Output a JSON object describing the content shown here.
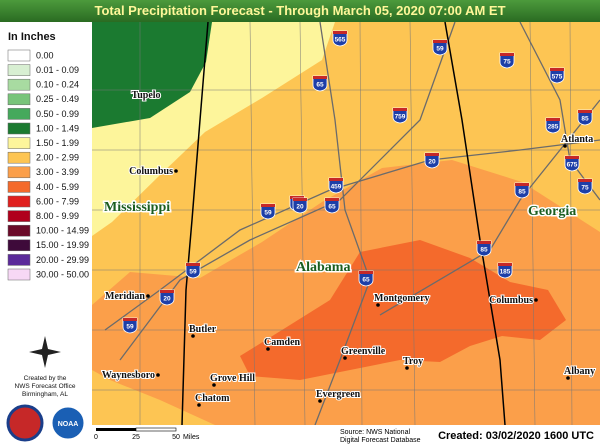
{
  "header": {
    "title": "Total Precipitation Forecast - Through March 05, 2020 07:00 AM ET"
  },
  "legend": {
    "title": "In Inches",
    "items": [
      {
        "label": "0.00",
        "color": "#ffffff"
      },
      {
        "label": "0.01 - 0.09",
        "color": "#d8efd2"
      },
      {
        "label": "0.10 - 0.24",
        "color": "#a8dba1"
      },
      {
        "label": "0.25 - 0.49",
        "color": "#78c47a"
      },
      {
        "label": "0.50 - 0.99",
        "color": "#45a95c"
      },
      {
        "label": "1.00 - 1.49",
        "color": "#1b7a30"
      },
      {
        "label": "1.50 - 1.99",
        "color": "#fdf59b"
      },
      {
        "label": "2.00 - 2.99",
        "color": "#fdc553"
      },
      {
        "label": "3.00 - 3.99",
        "color": "#fb9f4a"
      },
      {
        "label": "4.00 - 5.99",
        "color": "#f46a2c"
      },
      {
        "label": "6.00 - 7.99",
        "color": "#e0201e"
      },
      {
        "label": "8.00 - 9.99",
        "color": "#b0001c"
      },
      {
        "label": "10.00 - 14.99",
        "color": "#6a0a28"
      },
      {
        "label": "15.00 - 19.99",
        "color": "#3e0a3a"
      },
      {
        "label": "20.00 - 29.99",
        "color": "#5b2a9a"
      },
      {
        "label": "30.00 - 50.00",
        "color": "#f7d8f5"
      }
    ]
  },
  "credit": {
    "lines": [
      "Created by the",
      "NWS Forecast Office",
      "Birmingham, AL"
    ],
    "logo": "NOAA"
  },
  "map": {
    "states": [
      "Mississippi",
      "Alabama",
      "Georgia"
    ],
    "cities": [
      "Tupelo",
      "Columbus",
      "Meridian",
      "Waynesboro",
      "Butler",
      "Camden",
      "Grove Hill",
      "Chatom",
      "Evergreen",
      "Greenville",
      "Montgomery",
      "Troy",
      "Columbus",
      "Albany",
      "Atlanta"
    ],
    "interstates": [
      "565",
      "59",
      "75",
      "575",
      "65",
      "759",
      "285",
      "85",
      "20",
      "675",
      "75",
      "459",
      "85",
      "22",
      "59",
      "20",
      "65",
      "85",
      "59",
      "20",
      "65",
      "185",
      "59"
    ]
  },
  "footer": {
    "scale": {
      "ticks": [
        "0",
        "25",
        "50"
      ],
      "unit": "Miles"
    },
    "source": [
      "Source: NWS National",
      "Digital Forecast Database"
    ],
    "created": "Created: 03/02/2020 1600 UTC"
  }
}
